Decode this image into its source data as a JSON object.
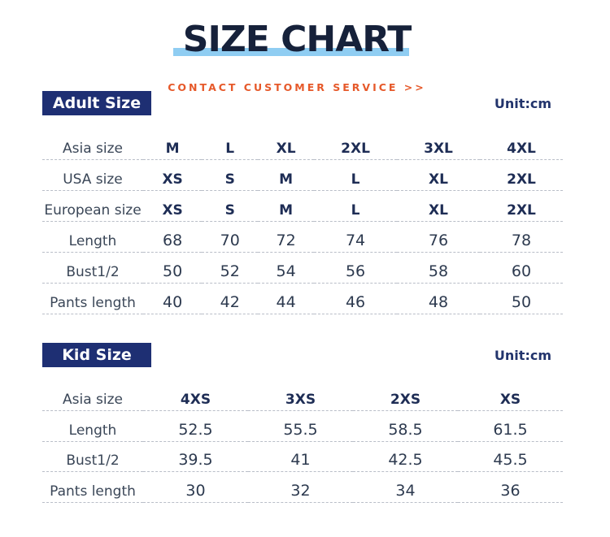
{
  "header": {
    "title": "SIZE CHART",
    "contact": "CONTACT CUSTOMER SERVICE >>"
  },
  "adult": {
    "badge": "Adult Size",
    "unit": "Unit:cm",
    "rows": [
      {
        "label": "Asia size",
        "values": [
          "M",
          "L",
          "XL",
          "2XL",
          "3XL",
          "4XL"
        ],
        "kind": "hdr"
      },
      {
        "label": "USA size",
        "values": [
          "XS",
          "S",
          "M",
          "L",
          "XL",
          "2XL"
        ],
        "kind": "hdr"
      },
      {
        "label": "European size",
        "values": [
          "XS",
          "S",
          "M",
          "L",
          "XL",
          "2XL"
        ],
        "kind": "hdr"
      },
      {
        "label": "Length",
        "values": [
          "68",
          "70",
          "72",
          "74",
          "76",
          "78"
        ],
        "kind": "num"
      },
      {
        "label": "Bust1/2",
        "values": [
          "50",
          "52",
          "54",
          "56",
          "58",
          "60"
        ],
        "kind": "num"
      },
      {
        "label": "Pants length",
        "values": [
          "40",
          "42",
          "44",
          "46",
          "48",
          "50"
        ],
        "kind": "num"
      }
    ]
  },
  "kid": {
    "badge": "Kid Size",
    "unit": "Unit:cm",
    "rows": [
      {
        "label": "Asia size",
        "values": [
          "4XS",
          "3XS",
          "2XS",
          "XS"
        ],
        "kind": "hdr"
      },
      {
        "label": "Length",
        "values": [
          "52.5",
          "55.5",
          "58.5",
          "61.5"
        ],
        "kind": "num"
      },
      {
        "label": "Bust1/2",
        "values": [
          "39.5",
          "41",
          "42.5",
          "45.5"
        ],
        "kind": "num"
      },
      {
        "label": "Pants length",
        "values": [
          "30",
          "32",
          "34",
          "36"
        ],
        "kind": "num"
      }
    ]
  }
}
